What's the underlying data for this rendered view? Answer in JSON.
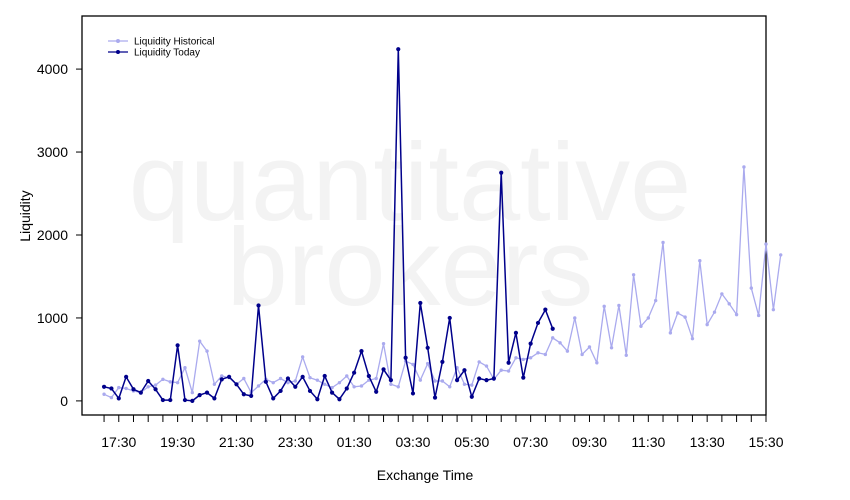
{
  "chart_data": {
    "type": "line",
    "title": "",
    "xlabel": "Exchange Time",
    "ylabel": "Liquidity",
    "watermark": [
      "quantitative",
      "brokers"
    ],
    "xlim": [
      -3,
      90
    ],
    "ylim": [
      -170,
      4640
    ],
    "yticks": [
      0,
      1000,
      2000,
      3000,
      4000
    ],
    "xtick_labels": [
      "17:30",
      "19:30",
      "21:30",
      "23:30",
      "01:30",
      "03:30",
      "05:30",
      "07:30",
      "09:30",
      "11:30",
      "13:30",
      "15:30"
    ],
    "xtick_positions_index": [
      2,
      10,
      18,
      26,
      34,
      42,
      50,
      58,
      66,
      74,
      82,
      90
    ],
    "grid": false,
    "legend_position": "top-left",
    "series": [
      {
        "name": "Liquidity Historical",
        "color": "#aaaaee",
        "x_start": 0,
        "values": [
          80,
          40,
          160,
          150,
          120,
          100,
          170,
          190,
          260,
          230,
          220,
          400,
          100,
          720,
          600,
          200,
          300,
          280,
          200,
          270,
          100,
          180,
          260,
          220,
          270,
          220,
          240,
          530,
          280,
          250,
          200,
          160,
          220,
          300,
          170,
          180,
          250,
          270,
          690,
          200,
          170,
          480,
          440,
          250,
          450,
          240,
          240,
          170,
          400,
          200,
          190,
          470,
          420,
          260,
          370,
          360,
          520,
          500,
          520,
          580,
          560,
          760,
          700,
          600,
          1000,
          560,
          650,
          460,
          1140,
          640,
          1150,
          550,
          1520,
          900,
          1000,
          1210,
          1910,
          820,
          1060,
          1010,
          750,
          1690,
          920,
          1070,
          1290,
          1170,
          1040,
          2820,
          1360,
          1030,
          1890,
          1100,
          1760
        ]
      },
      {
        "name": "Liquidity Today",
        "color": "#00008b",
        "x_start": 0,
        "values": [
          170,
          150,
          30,
          290,
          140,
          100,
          240,
          140,
          10,
          10,
          670,
          10,
          0,
          70,
          100,
          30,
          260,
          290,
          200,
          80,
          60,
          1150,
          230,
          30,
          120,
          270,
          170,
          290,
          120,
          20,
          300,
          100,
          20,
          150,
          340,
          600,
          300,
          110,
          380,
          250,
          4240,
          520,
          90,
          1180,
          640,
          40,
          470,
          1000,
          250,
          370,
          50,
          270,
          250,
          270,
          2750,
          460,
          820,
          280,
          690,
          940,
          1100,
          870
        ]
      }
    ]
  }
}
